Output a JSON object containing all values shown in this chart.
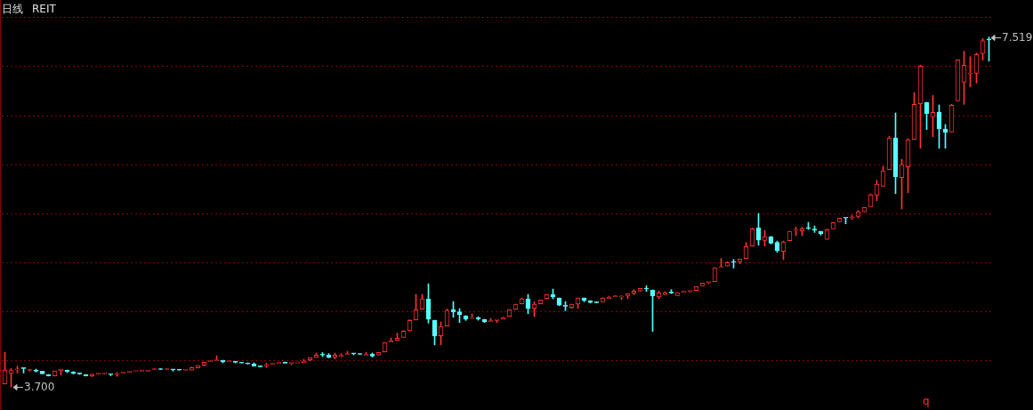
{
  "chart_data": {
    "type": "candlestick",
    "title": "日线",
    "subtitle": "REIT",
    "grid": "y",
    "ylim": [
      3.448,
      7.923
    ],
    "yticks": [
      {
        "value": 3.991,
        "label": null
      },
      {
        "value": 4.525,
        "label": null
      },
      {
        "value": 5.059,
        "label": null
      },
      {
        "value": 5.593,
        "label": null
      },
      {
        "value": 6.127,
        "label": null
      },
      {
        "value": 6.661,
        "label": null
      },
      {
        "value": 7.195,
        "label": null
      },
      {
        "value": 7.729,
        "label": null
      }
    ],
    "tick_labels": false,
    "annotations": [
      "3.700",
      "7.519",
      "q"
    ],
    "categories": [
      null,
      null,
      null,
      null,
      null,
      null,
      null,
      null,
      null,
      null,
      null,
      null,
      null,
      null,
      null,
      null,
      null,
      null,
      null,
      null,
      null,
      null,
      null,
      null,
      null,
      null,
      null,
      null,
      null,
      null,
      null,
      null,
      null,
      null,
      null,
      null,
      null,
      null,
      null,
      null,
      null,
      null,
      null,
      null,
      null,
      null,
      null,
      null,
      null,
      null,
      null,
      null,
      null,
      null,
      null,
      null,
      null,
      null,
      null,
      null,
      null,
      null,
      null,
      null,
      null,
      null,
      null,
      null,
      null,
      null,
      null,
      null,
      null,
      null,
      null,
      null,
      null,
      null,
      null,
      null,
      null,
      null,
      null,
      null,
      null,
      null,
      null,
      null,
      null,
      null,
      null,
      null,
      null,
      null,
      null,
      null,
      null,
      null,
      null,
      null,
      null,
      null,
      null,
      null,
      null,
      null,
      null,
      null,
      null,
      null,
      null,
      null,
      null,
      null,
      null,
      null,
      null,
      null,
      null,
      null,
      null,
      null,
      null,
      null,
      null,
      null,
      null,
      null,
      null,
      null,
      null,
      null,
      null,
      null,
      null,
      null,
      null,
      null,
      null,
      null,
      null,
      null,
      null,
      null,
      null,
      null,
      null,
      null,
      null,
      null,
      null,
      null,
      null,
      null,
      null,
      null,
      null,
      null,
      null
    ],
    "ohlc": [
      [
        3.732,
        4.079,
        3.732,
        3.884
      ],
      [
        3.846,
        3.9,
        3.7,
        3.878
      ],
      [
        3.886,
        3.926,
        3.852,
        3.888
      ],
      [
        3.905,
        3.905,
        3.852,
        3.9
      ],
      [
        3.88,
        3.894,
        3.872,
        3.884
      ],
      [
        3.884,
        3.894,
        3.862,
        3.872
      ],
      [
        3.872,
        3.872,
        3.843,
        3.843
      ],
      [
        3.836,
        3.836,
        3.819,
        3.819
      ],
      [
        3.819,
        3.875,
        3.819,
        3.875
      ],
      [
        3.878,
        3.894,
        3.829,
        3.894
      ],
      [
        3.884,
        3.884,
        3.855,
        3.865
      ],
      [
        3.862,
        3.868,
        3.84,
        3.846
      ],
      [
        3.848,
        3.85,
        3.836,
        3.843
      ],
      [
        3.836,
        3.836,
        3.819,
        3.819
      ],
      [
        3.817,
        3.842,
        3.812,
        3.839
      ],
      [
        3.84,
        3.849,
        3.836,
        3.846
      ],
      [
        3.843,
        3.849,
        3.843,
        3.846
      ],
      [
        3.838,
        3.838,
        3.822,
        3.834
      ],
      [
        3.834,
        3.858,
        3.815,
        3.838
      ],
      [
        3.85,
        3.858,
        3.85,
        3.855
      ],
      [
        3.86,
        3.868,
        3.858,
        3.865
      ],
      [
        3.866,
        3.872,
        3.866,
        3.87
      ],
      [
        3.872,
        3.884,
        3.872,
        3.875
      ],
      [
        3.872,
        3.88,
        3.872,
        3.875
      ],
      [
        3.89,
        3.897,
        3.89,
        3.894
      ],
      [
        3.894,
        3.894,
        3.89,
        3.89
      ],
      [
        3.89,
        3.9,
        3.89,
        3.894
      ],
      [
        3.89,
        3.89,
        3.872,
        3.886
      ],
      [
        3.886,
        3.886,
        3.882,
        3.882
      ],
      [
        3.882,
        3.886,
        3.882,
        3.886
      ],
      [
        3.884,
        3.916,
        3.884,
        3.91
      ],
      [
        3.907,
        3.933,
        3.907,
        3.933
      ],
      [
        3.936,
        3.969,
        3.93,
        3.969
      ],
      [
        3.976,
        3.979,
        3.976,
        3.979
      ],
      [
        3.985,
        4.04,
        3.985,
        3.988
      ],
      [
        3.991,
        3.991,
        3.962,
        3.972
      ],
      [
        3.976,
        3.979,
        3.976,
        3.979
      ],
      [
        3.979,
        3.979,
        3.962,
        3.969
      ],
      [
        3.966,
        3.969,
        3.96,
        3.96
      ],
      [
        3.956,
        3.962,
        3.95,
        3.95
      ],
      [
        3.952,
        3.962,
        3.926,
        3.926
      ],
      [
        3.923,
        3.923,
        3.92,
        3.92
      ],
      [
        3.93,
        3.96,
        3.912,
        3.936
      ],
      [
        3.946,
        3.95,
        3.946,
        3.95
      ],
      [
        3.956,
        3.959,
        3.956,
        3.959
      ],
      [
        3.962,
        3.972,
        3.959,
        3.959
      ],
      [
        3.956,
        3.959,
        3.943,
        3.959
      ],
      [
        3.962,
        3.972,
        3.962,
        3.966
      ],
      [
        3.966,
        4.001,
        3.966,
        3.982
      ],
      [
        3.994,
        4.017,
        3.985,
        4.017
      ],
      [
        4.023,
        4.069,
        4.023,
        4.047
      ],
      [
        4.053,
        4.075,
        4.03,
        4.047
      ],
      [
        4.05,
        4.063,
        4.017,
        4.023
      ],
      [
        4.023,
        4.069,
        4.007,
        4.047
      ],
      [
        4.034,
        4.063,
        4.027,
        4.037
      ],
      [
        4.053,
        4.088,
        4.053,
        4.056
      ],
      [
        4.066,
        4.066,
        4.05,
        4.06
      ],
      [
        4.058,
        4.058,
        4.055,
        4.055
      ],
      [
        4.044,
        4.078,
        4.044,
        4.047
      ],
      [
        4.056,
        4.07,
        4.026,
        4.036
      ],
      [
        4.047,
        4.076,
        4.047,
        4.076
      ],
      [
        4.082,
        4.183,
        4.082,
        4.183
      ],
      [
        4.188,
        4.235,
        4.188,
        4.202
      ],
      [
        4.208,
        4.286,
        4.208,
        4.231
      ],
      [
        4.241,
        4.315,
        4.241,
        4.309
      ],
      [
        4.312,
        4.435,
        4.312,
        4.425
      ],
      [
        4.431,
        4.71,
        4.431,
        4.542
      ],
      [
        4.548,
        4.71,
        4.548,
        4.661
      ],
      [
        4.661,
        4.826,
        4.396,
        4.441
      ],
      [
        4.428,
        4.428,
        4.159,
        4.256
      ],
      [
        4.256,
        4.409,
        4.159,
        4.36
      ],
      [
        4.363,
        4.551,
        4.363,
        4.535
      ],
      [
        4.545,
        4.632,
        4.46,
        4.519
      ],
      [
        4.519,
        4.554,
        4.402,
        4.489
      ],
      [
        4.477,
        4.477,
        4.425,
        4.441
      ],
      [
        4.447,
        4.496,
        4.447,
        4.45
      ],
      [
        4.457,
        4.467,
        4.428,
        4.441
      ],
      [
        4.438,
        4.438,
        4.402,
        4.412
      ],
      [
        4.412,
        4.447,
        4.412,
        4.415
      ],
      [
        4.425,
        4.438,
        4.402,
        4.438
      ],
      [
        4.441,
        4.463,
        4.441,
        4.457
      ],
      [
        4.47,
        4.542,
        4.47,
        4.542
      ],
      [
        4.548,
        4.603,
        4.548,
        4.603
      ],
      [
        4.606,
        4.671,
        4.606,
        4.661
      ],
      [
        4.661,
        4.71,
        4.499,
        4.557
      ],
      [
        4.557,
        4.629,
        4.467,
        4.603
      ],
      [
        4.606,
        4.648,
        4.606,
        4.648
      ],
      [
        4.664,
        4.707,
        4.661,
        4.707
      ],
      [
        4.71,
        4.768,
        4.661,
        4.681
      ],
      [
        4.671,
        4.671,
        4.587,
        4.593
      ],
      [
        4.584,
        4.632,
        4.532,
        4.58
      ],
      [
        4.567,
        4.603,
        4.557,
        4.603
      ],
      [
        4.603,
        4.671,
        4.557,
        4.671
      ],
      [
        4.671,
        4.671,
        4.629,
        4.645
      ],
      [
        4.642,
        4.642,
        4.616,
        4.622
      ],
      [
        4.622,
        4.622,
        4.619,
        4.619
      ],
      [
        4.629,
        4.674,
        4.629,
        4.671
      ],
      [
        4.664,
        4.69,
        4.664,
        4.681
      ],
      [
        4.684,
        4.697,
        4.681,
        4.687
      ],
      [
        4.681,
        4.693,
        4.655,
        4.693
      ],
      [
        4.697,
        4.719,
        4.664,
        4.719
      ],
      [
        4.723,
        4.762,
        4.707,
        4.746
      ],
      [
        4.746,
        4.775,
        4.742,
        4.775
      ],
      [
        4.771,
        4.804,
        4.742,
        4.768
      ],
      [
        4.758,
        4.758,
        4.305,
        4.693
      ],
      [
        4.681,
        4.746,
        4.662,
        4.726
      ],
      [
        4.707,
        4.739,
        4.707,
        4.729
      ],
      [
        4.729,
        4.762,
        4.719,
        4.726
      ],
      [
        4.697,
        4.729,
        4.697,
        4.729
      ],
      [
        4.733,
        4.746,
        4.733,
        4.736
      ],
      [
        4.742,
        4.746,
        4.733,
        4.746
      ],
      [
        4.752,
        4.794,
        4.752,
        4.794
      ],
      [
        4.804,
        4.833,
        4.804,
        4.833
      ],
      [
        4.839,
        4.843,
        4.826,
        4.843
      ],
      [
        4.849,
        5.001,
        4.849,
        5.001
      ],
      [
        5.004,
        5.101,
        5.004,
        5.008
      ],
      [
        5.018,
        5.066,
        5.018,
        5.056
      ],
      [
        5.062,
        5.092,
        4.998,
        5.059
      ],
      [
        5.066,
        5.095,
        5.043,
        5.095
      ],
      [
        5.101,
        5.276,
        5.101,
        5.231
      ],
      [
        5.237,
        5.435,
        5.237,
        5.425
      ],
      [
        5.438,
        5.593,
        5.247,
        5.302
      ],
      [
        5.299,
        5.409,
        5.237,
        5.341
      ],
      [
        5.341,
        5.341,
        5.26,
        5.27
      ],
      [
        5.276,
        5.292,
        5.17,
        5.186
      ],
      [
        5.179,
        5.292,
        5.091,
        5.283
      ],
      [
        5.295,
        5.399,
        5.295,
        5.399
      ],
      [
        5.409,
        5.444,
        5.351,
        5.412
      ],
      [
        5.402,
        5.444,
        5.351,
        5.425
      ],
      [
        5.434,
        5.496,
        5.418,
        5.431
      ],
      [
        5.415,
        5.457,
        5.386,
        5.412
      ],
      [
        5.399,
        5.399,
        5.357,
        5.373
      ],
      [
        5.309,
        5.421,
        5.309,
        5.415
      ],
      [
        5.425,
        5.493,
        5.425,
        5.493
      ],
      [
        5.503,
        5.542,
        5.503,
        5.542
      ],
      [
        5.545,
        5.545,
        5.48,
        5.542
      ],
      [
        5.545,
        5.575,
        5.528,
        5.548
      ],
      [
        5.561,
        5.626,
        5.545,
        5.613
      ],
      [
        5.61,
        5.658,
        5.61,
        5.658
      ],
      [
        5.668,
        5.807,
        5.668,
        5.797
      ],
      [
        5.794,
        5.955,
        5.732,
        5.914
      ],
      [
        5.891,
        6.108,
        5.891,
        6.059
      ],
      [
        6.072,
        6.437,
        6.072,
        6.418
      ],
      [
        6.418,
        6.69,
        5.81,
        5.994
      ],
      [
        5.985,
        6.185,
        5.642,
        6.127
      ],
      [
        6.101,
        6.409,
        5.82,
        6.399
      ],
      [
        6.402,
        6.913,
        6.402,
        6.784
      ],
      [
        6.791,
        7.212,
        6.305,
        7.202
      ],
      [
        6.807,
        6.807,
        6.509,
        6.684
      ],
      [
        6.649,
        6.881,
        6.431,
        6.697
      ],
      [
        6.7,
        6.778,
        6.305,
        6.518
      ],
      [
        6.515,
        6.564,
        6.305,
        6.48
      ],
      [
        6.483,
        6.784,
        6.483,
        6.775
      ],
      [
        6.823,
        7.27,
        6.823,
        7.27
      ],
      [
        7.027,
        7.364,
        6.784,
        7.212
      ],
      [
        7.115,
        7.305,
        6.975,
        7.124
      ],
      [
        7.124,
        7.344,
        7.017,
        7.328
      ],
      [
        7.338,
        7.503,
        7.266,
        7.477
      ],
      [
        7.49,
        7.519,
        7.257,
        7.487
      ]
    ]
  }
}
